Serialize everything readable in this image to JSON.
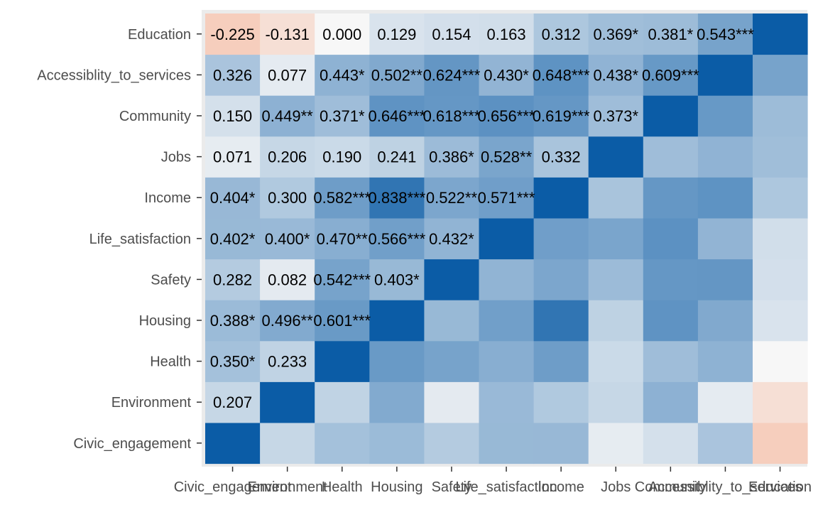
{
  "chart_data": {
    "type": "heatmap",
    "title": "",
    "xlabel": "",
    "ylabel": "",
    "variables": [
      "Civic_engagement",
      "Environment",
      "Health",
      "Housing",
      "Safety",
      "Life_satisfaction",
      "Income",
      "Jobs",
      "Community",
      "Accessiblity_to_services",
      "Education"
    ],
    "x_categories": [
      "Civic_engagement",
      "Environment",
      "Health",
      "Housing",
      "Safety",
      "Life_satisfaction",
      "Income",
      "Jobs",
      "Community",
      "Accessiblity_to_services",
      "Education"
    ],
    "y_categories": [
      "Civic_engagement",
      "Environment",
      "Health",
      "Housing",
      "Safety",
      "Life_satisfaction",
      "Income",
      "Jobs",
      "Community",
      "Accessiblity_to_services",
      "Education"
    ],
    "values": [
      [
        1.0,
        0.207,
        0.35,
        0.388,
        0.282,
        0.402,
        0.404,
        0.071,
        0.15,
        0.326,
        -0.225
      ],
      [
        0.207,
        1.0,
        0.233,
        0.496,
        0.082,
        0.4,
        0.3,
        0.206,
        0.449,
        0.077,
        -0.131
      ],
      [
        0.35,
        0.233,
        1.0,
        0.601,
        0.542,
        0.47,
        0.582,
        0.19,
        0.371,
        0.443,
        0.0
      ],
      [
        0.388,
        0.496,
        0.601,
        1.0,
        0.403,
        0.566,
        0.838,
        0.241,
        0.646,
        0.502,
        0.129
      ],
      [
        0.282,
        0.082,
        0.542,
        0.403,
        1.0,
        0.432,
        0.522,
        0.386,
        0.618,
        0.624,
        0.154
      ],
      [
        0.402,
        0.4,
        0.47,
        0.566,
        0.432,
        1.0,
        0.571,
        0.528,
        0.656,
        0.43,
        0.163
      ],
      [
        0.404,
        0.3,
        0.582,
        0.838,
        0.522,
        0.571,
        1.0,
        0.332,
        0.619,
        0.648,
        0.312
      ],
      [
        0.071,
        0.206,
        0.19,
        0.241,
        0.386,
        0.528,
        0.332,
        1.0,
        0.373,
        0.438,
        0.369
      ],
      [
        0.15,
        0.449,
        0.371,
        0.646,
        0.618,
        0.656,
        0.619,
        0.373,
        1.0,
        0.609,
        0.381
      ],
      [
        0.326,
        0.077,
        0.443,
        0.502,
        0.624,
        0.43,
        0.648,
        0.438,
        0.609,
        1.0,
        0.543
      ],
      [
        -0.225,
        -0.131,
        0.0,
        0.129,
        0.154,
        0.163,
        0.312,
        0.369,
        0.381,
        0.543,
        1.0
      ]
    ],
    "lower_triangle_labels": [
      [
        "0.207",
        "0.350*",
        "0.388*",
        "0.282",
        "0.402*",
        "0.404*",
        "0.071",
        "0.150",
        "0.326",
        "-0.225"
      ],
      [
        "0.233",
        "0.496**",
        "0.082",
        "0.400*",
        "0.300",
        "0.206",
        "0.449**",
        "0.077",
        "-0.131"
      ],
      [
        "0.601***",
        "0.542***",
        "0.470**",
        "0.582***",
        "0.190",
        "0.371*",
        "0.443*",
        "0.000"
      ],
      [
        "0.403*",
        "0.566***",
        "0.838***",
        "0.241",
        "0.646***",
        "0.502**",
        "0.129"
      ],
      [
        "0.432*",
        "0.522**",
        "0.386*",
        "0.618***",
        "0.624***",
        "0.154"
      ],
      [
        "0.571***",
        "0.528**",
        "0.656***",
        "0.430*",
        "0.163"
      ],
      [
        "0.332",
        "0.619***",
        "0.648***",
        "0.312"
      ],
      [
        "0.373*",
        "0.438*",
        "0.369*"
      ],
      [
        "0.609***",
        "0.381*"
      ],
      [
        "0.543***"
      ]
    ],
    "color_scale": {
      "low": "#f5a582",
      "mid": "#f7f7f7",
      "high": "#0b5ca6",
      "domain": [
        -1,
        0,
        1
      ]
    },
    "panel_background": "#ebebeb",
    "legend": "none"
  }
}
